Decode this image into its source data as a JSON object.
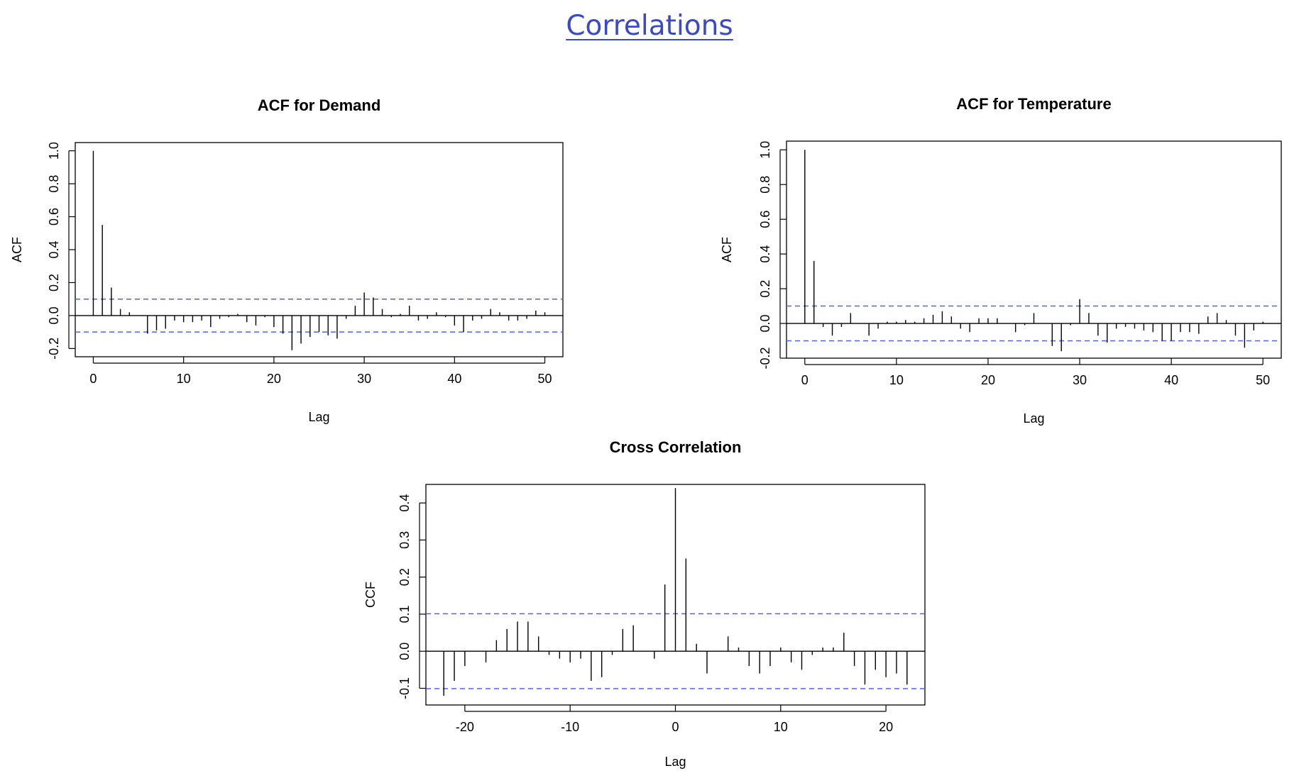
{
  "page": {
    "title": "Correlations"
  },
  "colors": {
    "title_link": "#3a4ac7",
    "confidence_band": "#5060e8",
    "spike": "#000000"
  },
  "chart_data": [
    {
      "type": "bar",
      "title": "ACF for Demand",
      "xlabel": "Lag",
      "ylabel": "ACF",
      "xlim": [
        -2,
        52
      ],
      "ylim": [
        -0.25,
        1.05
      ],
      "xticks": [
        0,
        10,
        20,
        30,
        40,
        50
      ],
      "yticks": [
        -0.2,
        0.0,
        0.2,
        0.4,
        0.6,
        0.8,
        1.0
      ],
      "xtick_labels": [
        "0",
        "10",
        "20",
        "30",
        "40",
        "50"
      ],
      "ytick_labels": [
        "-0.2",
        "0.0",
        "0.2",
        "0.4",
        "0.6",
        "0.8",
        "1.0"
      ],
      "confidence_band": [
        -0.1,
        0.1
      ],
      "x": [
        0,
        1,
        2,
        3,
        4,
        5,
        6,
        7,
        8,
        9,
        10,
        11,
        12,
        13,
        14,
        15,
        16,
        17,
        18,
        19,
        20,
        21,
        22,
        23,
        24,
        25,
        26,
        27,
        28,
        29,
        30,
        31,
        32,
        33,
        34,
        35,
        36,
        37,
        38,
        39,
        40,
        41,
        42,
        43,
        44,
        45,
        46,
        47,
        48,
        49,
        50
      ],
      "values": [
        1.0,
        0.55,
        0.17,
        0.04,
        0.02,
        0.0,
        -0.11,
        -0.09,
        -0.08,
        -0.03,
        -0.04,
        -0.04,
        -0.03,
        -0.07,
        -0.02,
        -0.01,
        0.01,
        -0.04,
        -0.06,
        -0.01,
        -0.07,
        -0.11,
        -0.21,
        -0.17,
        -0.13,
        -0.1,
        -0.12,
        -0.14,
        -0.02,
        0.06,
        0.14,
        0.11,
        0.04,
        -0.01,
        0.01,
        0.06,
        -0.03,
        -0.02,
        0.02,
        -0.01,
        -0.06,
        -0.1,
        -0.03,
        -0.02,
        0.04,
        0.02,
        -0.03,
        -0.03,
        -0.02,
        0.03,
        0.02
      ]
    },
    {
      "type": "bar",
      "title": "ACF for Temperature",
      "xlabel": "Lag",
      "ylabel": "ACF",
      "xlim": [
        -2,
        52
      ],
      "ylim": [
        -0.2,
        1.05
      ],
      "xticks": [
        0,
        10,
        20,
        30,
        40,
        50
      ],
      "yticks": [
        -0.2,
        0.0,
        0.2,
        0.4,
        0.6,
        0.8,
        1.0
      ],
      "xtick_labels": [
        "0",
        "10",
        "20",
        "30",
        "40",
        "50"
      ],
      "ytick_labels": [
        "-0.2",
        "0.0",
        "0.2",
        "0.4",
        "0.6",
        "0.8",
        "1.0"
      ],
      "confidence_band": [
        -0.1,
        0.1
      ],
      "x": [
        0,
        1,
        2,
        3,
        4,
        5,
        6,
        7,
        8,
        9,
        10,
        11,
        12,
        13,
        14,
        15,
        16,
        17,
        18,
        19,
        20,
        21,
        22,
        23,
        24,
        25,
        26,
        27,
        28,
        29,
        30,
        31,
        32,
        33,
        34,
        35,
        36,
        37,
        38,
        39,
        40,
        41,
        42,
        43,
        44,
        45,
        46,
        47,
        48,
        49,
        50
      ],
      "values": [
        1.0,
        0.36,
        -0.02,
        -0.07,
        -0.02,
        0.06,
        0.0,
        -0.07,
        -0.03,
        0.01,
        0.01,
        0.02,
        0.01,
        0.03,
        0.05,
        0.07,
        0.04,
        -0.03,
        -0.05,
        0.03,
        0.03,
        0.03,
        0.0,
        -0.05,
        -0.01,
        0.06,
        0.0,
        -0.13,
        -0.16,
        -0.01,
        0.14,
        0.06,
        -0.07,
        -0.11,
        -0.03,
        -0.02,
        -0.03,
        -0.04,
        -0.05,
        -0.1,
        -0.1,
        -0.05,
        -0.05,
        -0.06,
        0.04,
        0.06,
        0.02,
        -0.07,
        -0.14,
        -0.04,
        0.01
      ]
    },
    {
      "type": "bar",
      "title": "Cross Correlation",
      "xlabel": "Lag",
      "ylabel": "CCF",
      "xlim": [
        -23.7,
        23.7
      ],
      "ylim": [
        -0.145,
        0.45
      ],
      "xticks": [
        -20,
        -10,
        0,
        10,
        20
      ],
      "yticks": [
        -0.1,
        0.0,
        0.1,
        0.2,
        0.3,
        0.4
      ],
      "xtick_labels": [
        "-20",
        "-10",
        "0",
        "10",
        "20"
      ],
      "ytick_labels": [
        "-0.1",
        "0.0",
        "0.1",
        "0.2",
        "0.3",
        "0.4"
      ],
      "confidence_band": [
        -0.101,
        0.101
      ],
      "x": [
        -22,
        -21,
        -20,
        -19,
        -18,
        -17,
        -16,
        -15,
        -14,
        -13,
        -12,
        -11,
        -10,
        -9,
        -8,
        -7,
        -6,
        -5,
        -4,
        -3,
        -2,
        -1,
        0,
        1,
        2,
        3,
        4,
        5,
        6,
        7,
        8,
        9,
        10,
        11,
        12,
        13,
        14,
        15,
        16,
        17,
        18,
        19,
        20,
        21,
        22
      ],
      "values": [
        -0.12,
        -0.08,
        -0.04,
        0.0,
        -0.03,
        0.03,
        0.06,
        0.08,
        0.08,
        0.04,
        -0.01,
        -0.02,
        -0.03,
        -0.02,
        -0.08,
        -0.07,
        -0.01,
        0.06,
        0.07,
        0.0,
        -0.02,
        0.18,
        0.44,
        0.25,
        0.02,
        -0.06,
        0.0,
        0.04,
        0.01,
        -0.04,
        -0.06,
        -0.04,
        0.01,
        -0.03,
        -0.05,
        -0.01,
        0.01,
        0.01,
        0.05,
        -0.04,
        -0.09,
        -0.05,
        -0.07,
        -0.06,
        -0.09
      ]
    }
  ]
}
